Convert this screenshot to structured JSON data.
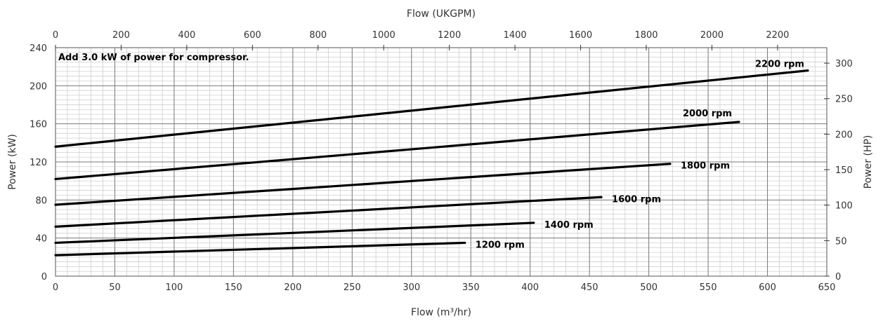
{
  "chart_data": {
    "type": "line",
    "title": "",
    "note": "Add 3.0 kW of power for compressor.",
    "xlabel": "Flow (m³/hr)",
    "x2label": "Flow (UKGPM)",
    "ylabel": "Power (kW)",
    "y2label": "Power (HP)",
    "xlim": [
      0,
      650
    ],
    "ylim": [
      0,
      240
    ],
    "x2lim": [
      0,
      2350
    ],
    "y2lim": [
      0,
      321.8
    ],
    "x_ticks": [
      "0",
      "50",
      "100",
      "150",
      "200",
      "250",
      "300",
      "350",
      "400",
      "450",
      "500",
      "550",
      "600",
      "650"
    ],
    "y_ticks": [
      "0",
      "40",
      "80",
      "120",
      "160",
      "200",
      "240"
    ],
    "x2_ticks": [
      "0",
      "200",
      "400",
      "600",
      "800",
      "1000",
      "1200",
      "1400",
      "1600",
      "1800",
      "2000",
      "2200"
    ],
    "y2_ticks": [
      "0",
      "50",
      "100",
      "150",
      "200",
      "250",
      "300"
    ],
    "grid": true,
    "series": [
      {
        "name": "1200 rpm",
        "x": [
          0,
          345
        ],
        "y": [
          22,
          35
        ]
      },
      {
        "name": "1400 rpm",
        "x": [
          0,
          403
        ],
        "y": [
          35,
          56
        ]
      },
      {
        "name": "1600 rpm",
        "x": [
          0,
          460
        ],
        "y": [
          52,
          83
        ]
      },
      {
        "name": "1800 rpm",
        "x": [
          0,
          518
        ],
        "y": [
          75,
          118
        ]
      },
      {
        "name": "2000 rpm",
        "x": [
          0,
          576
        ],
        "y": [
          102,
          162
        ]
      },
      {
        "name": "2200 rpm",
        "x": [
          0,
          634
        ],
        "y": [
          136,
          216
        ]
      }
    ]
  }
}
